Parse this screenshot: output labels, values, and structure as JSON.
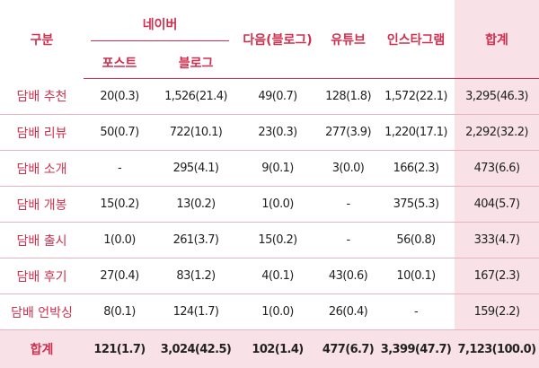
{
  "header": {
    "category": "구분",
    "naver": "네이버",
    "naver_post": "포스트",
    "naver_blog": "블로그",
    "daum_blog": "다음(블로그)",
    "youtube": "유튜브",
    "instagram": "인스타그램",
    "total": "합계"
  },
  "rows": [
    {
      "label": "담배 추천",
      "post": "20(0.3)",
      "blog": "1,526(21.4)",
      "daum": "49(0.7)",
      "youtube": "128(1.8)",
      "instagram": "1,572(22.1)",
      "total": "3,295(46.3)"
    },
    {
      "label": "담배 리뷰",
      "post": "50(0.7)",
      "blog": "722(10.1)",
      "daum": "23(0.3)",
      "youtube": "277(3.9)",
      "instagram": "1,220(17.1)",
      "total": "2,292(32.2)"
    },
    {
      "label": "담배 소개",
      "post": "-",
      "blog": "295(4.1)",
      "daum": "9(0.1)",
      "youtube": "3(0.0)",
      "instagram": "166(2.3)",
      "total": "473(6.6)"
    },
    {
      "label": "담배 개봉",
      "post": "15(0.2)",
      "blog": "13(0.2)",
      "daum": "1(0.0)",
      "youtube": "-",
      "instagram": "375(5.3)",
      "total": "404(5.7)"
    },
    {
      "label": "담배 출시",
      "post": "1(0.0)",
      "blog": "261(3.7)",
      "daum": "15(0.2)",
      "youtube": "-",
      "instagram": "56(0.8)",
      "total": "333(4.7)"
    },
    {
      "label": "담배 후기",
      "post": "27(0.4)",
      "blog": "83(1.2)",
      "daum": "4(0.1)",
      "youtube": "43(0.6)",
      "instagram": "10(0.1)",
      "total": "167(2.3)"
    },
    {
      "label": "담배 언박싱",
      "post": "8(0.1)",
      "blog": "124(1.7)",
      "daum": "1(0.0)",
      "youtube": "26(0.4)",
      "instagram": "-",
      "total": "159(2.2)"
    }
  ],
  "totals": {
    "label": "합계",
    "post": "121(1.7)",
    "blog": "3,024(42.5)",
    "daum": "102(1.4)",
    "youtube": "477(6.7)",
    "instagram": "3,399(47.7)",
    "total": "7,123(100.0)"
  }
}
